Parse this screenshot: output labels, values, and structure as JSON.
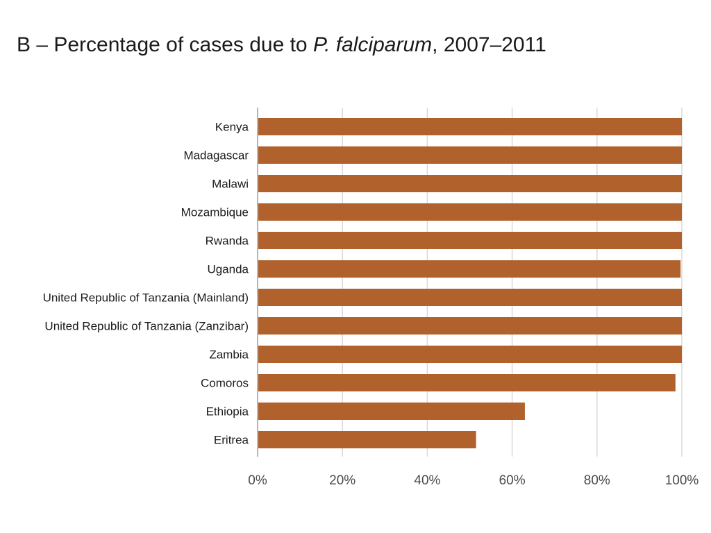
{
  "chart_data": {
    "type": "bar",
    "orientation": "horizontal",
    "title_prefix": "B – Percentage of cases due to ",
    "title_italic": "P. falciparum",
    "title_suffix": ", 2007–2011",
    "categories": [
      "Kenya",
      "Madagascar",
      "Malawi",
      "Mozambique",
      "Rwanda",
      "Uganda",
      "United Republic of Tanzania (Mainland)",
      "United Republic of Tanzania (Zanzibar)",
      "Zambia",
      "Comoros",
      "Ethiopia",
      "Eritrea"
    ],
    "values": [
      100,
      100,
      100,
      100,
      100,
      99.7,
      100,
      100,
      100,
      98.5,
      63,
      51.5
    ],
    "xlim": [
      0,
      100
    ],
    "xticks": [
      "0%",
      "20%",
      "40%",
      "60%",
      "80%",
      "100%"
    ],
    "xtick_values": [
      0,
      20,
      40,
      60,
      80,
      100
    ],
    "grid": "vertical",
    "bar_color": "#b1622c",
    "grid_color": "#d9d9d9",
    "axis_color": "#b5b5b5"
  }
}
